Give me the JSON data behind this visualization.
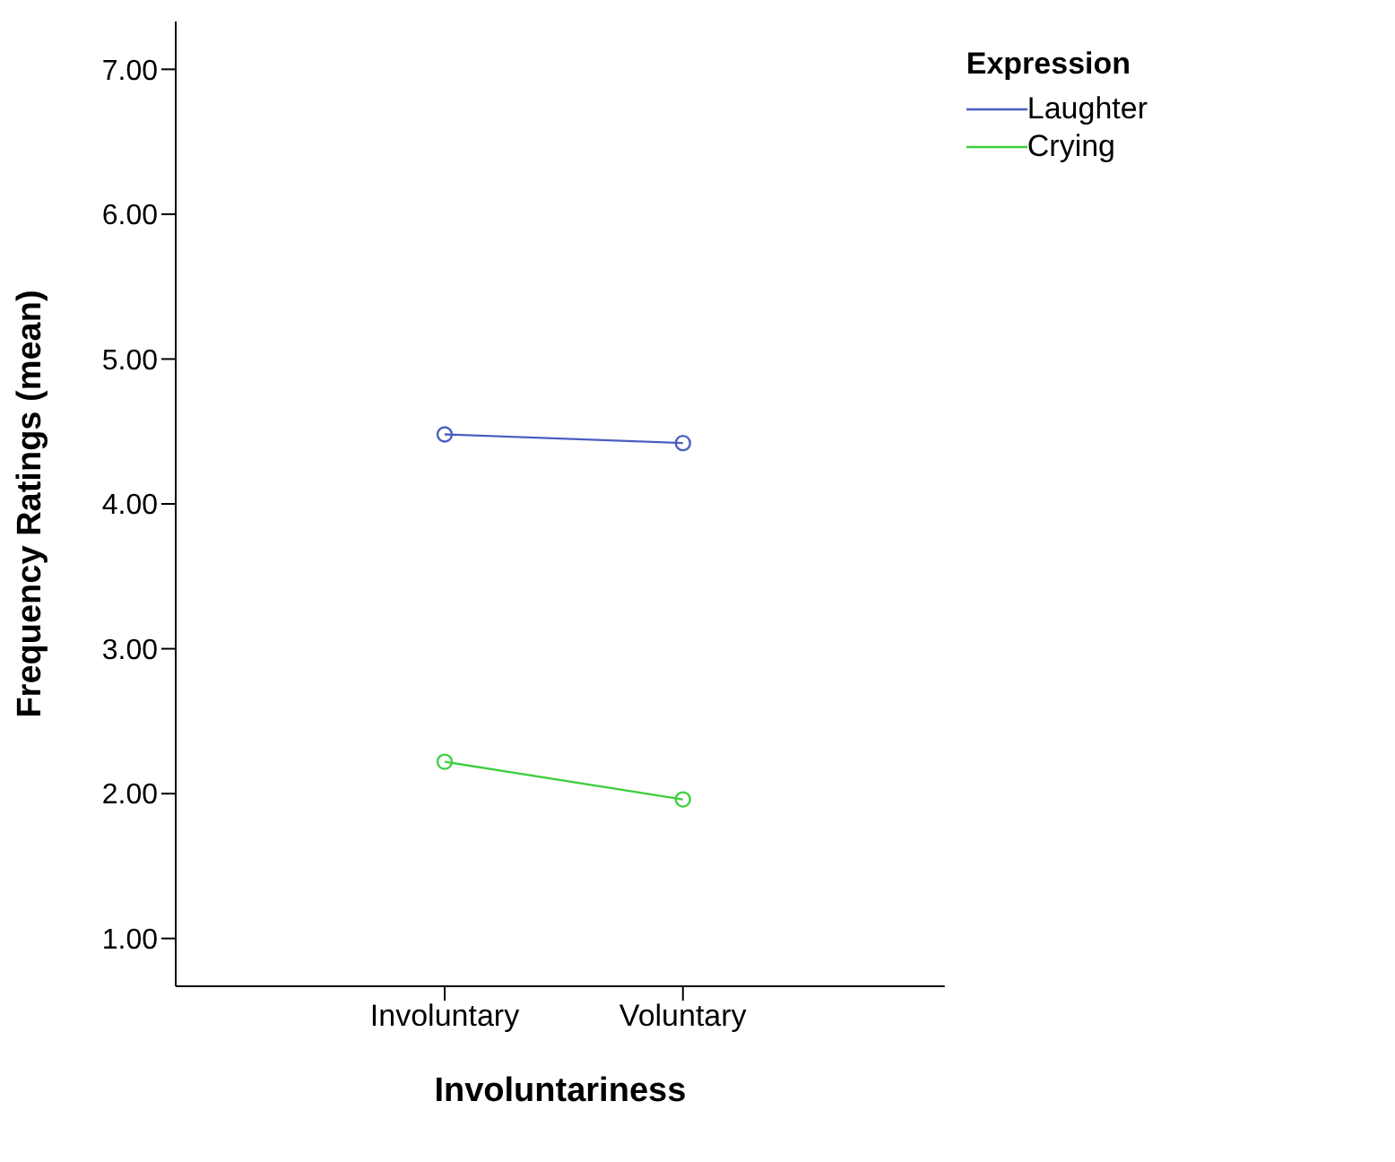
{
  "chart_data": {
    "type": "line",
    "xlabel": "Involuntariness",
    "ylabel": "Frequency Ratings (mean)",
    "legend_title": "Expression",
    "categories": [
      "Involuntary",
      "Voluntary"
    ],
    "series": [
      {
        "name": "Laughter",
        "color": "#4a5fc1",
        "values": [
          4.48,
          4.42
        ]
      },
      {
        "name": "Crying",
        "color": "#3fcf3f",
        "values": [
          2.22,
          1.96
        ]
      }
    ],
    "ylim": [
      0.67,
      7.33
    ],
    "yticks": [
      {
        "value": 1,
        "label": "1.00"
      },
      {
        "value": 2,
        "label": "2.00"
      },
      {
        "value": 3,
        "label": "3.00"
      },
      {
        "value": 4,
        "label": "4.00"
      },
      {
        "value": 5,
        "label": "5.00"
      },
      {
        "value": 6,
        "label": "6.00"
      },
      {
        "value": 7,
        "label": "7.00"
      }
    ],
    "grid": false,
    "legend": "top right",
    "marker": "circle",
    "line_style": "solid"
  }
}
